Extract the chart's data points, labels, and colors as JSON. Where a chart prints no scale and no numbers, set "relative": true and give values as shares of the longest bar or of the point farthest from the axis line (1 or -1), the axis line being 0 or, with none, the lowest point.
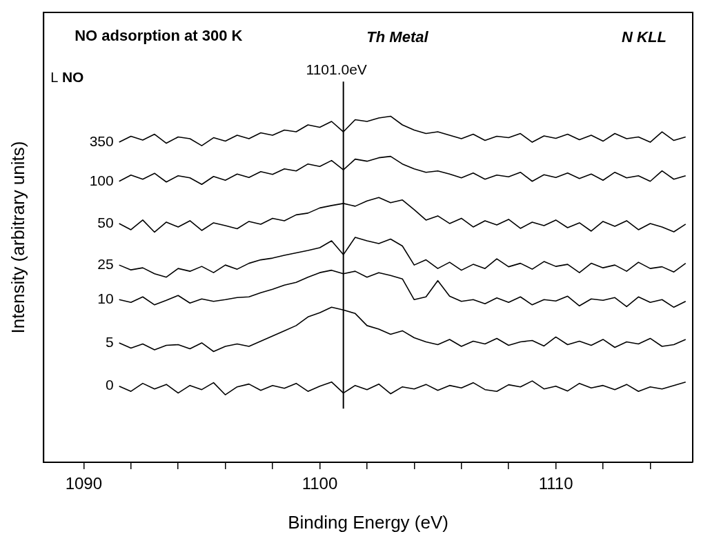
{
  "chart_data": {
    "type": "line",
    "title": "NO adsorption at 300 K",
    "annotations": [
      "Th Metal",
      "N KLL"
    ],
    "xlabel": "Binding Energy (eV)",
    "ylabel": "Intensity (arbitrary units)",
    "legend_title": "L NO",
    "relative": true,
    "legend": false,
    "grid": false,
    "marker": "none",
    "line_style": "solid",
    "xlim": [
      1088.3,
      1115.8
    ],
    "xticks": [
      1090,
      {
        "value": 1092,
        "label": null
      },
      {
        "value": 1094,
        "label": null
      },
      {
        "value": 1096,
        "label": null
      },
      {
        "value": 1098,
        "label": null
      },
      1100,
      {
        "value": 1102,
        "label": null
      },
      {
        "value": 1104,
        "label": null
      },
      {
        "value": 1106,
        "label": null
      },
      {
        "value": 1108,
        "label": null
      },
      1110,
      {
        "value": 1112,
        "label": null
      },
      {
        "value": 1114,
        "label": null
      }
    ],
    "ref_lines": [
      {
        "axis": "x",
        "value": 1101.0,
        "label": "1101.0eV",
        "color": "#000000"
      }
    ],
    "x": [
      1091.5,
      1092,
      1092.5,
      1093,
      1093.5,
      1094,
      1094.5,
      1095,
      1095.5,
      1096,
      1096.5,
      1097,
      1097.5,
      1098,
      1098.5,
      1099,
      1099.5,
      1100,
      1100.5,
      1101,
      1101.5,
      1102,
      1102.5,
      1103,
      1103.5,
      1104,
      1104.5,
      1105,
      1105.5,
      1106,
      1106.5,
      1107,
      1107.5,
      1108,
      1108.5,
      1109,
      1109.5,
      1110,
      1110.5,
      1111,
      1111.5,
      1112,
      1112.5,
      1113,
      1113.5,
      1114,
      1114.5,
      1115,
      1115.5
    ],
    "series": [
      {
        "name": "350",
        "color": "#000000",
        "values": [
          0.925,
          0.942,
          0.931,
          0.948,
          0.922,
          0.94,
          0.935,
          0.915,
          0.938,
          0.928,
          0.945,
          0.935,
          0.952,
          0.945,
          0.96,
          0.955,
          0.975,
          0.968,
          0.985,
          0.955,
          0.99,
          0.985,
          0.995,
          1.0,
          0.975,
          0.96,
          0.95,
          0.955,
          0.945,
          0.935,
          0.948,
          0.93,
          0.942,
          0.938,
          0.95,
          0.925,
          0.943,
          0.936,
          0.948,
          0.932,
          0.945,
          0.928,
          0.95,
          0.935,
          0.94,
          0.925,
          0.955,
          0.93,
          0.94
        ]
      },
      {
        "name": "100",
        "color": "#000000",
        "values": [
          0.812,
          0.83,
          0.818,
          0.835,
          0.81,
          0.828,
          0.822,
          0.803,
          0.826,
          0.815,
          0.833,
          0.823,
          0.84,
          0.832,
          0.848,
          0.842,
          0.862,
          0.855,
          0.872,
          0.845,
          0.876,
          0.87,
          0.88,
          0.884,
          0.862,
          0.848,
          0.838,
          0.842,
          0.833,
          0.822,
          0.836,
          0.818,
          0.83,
          0.825,
          0.838,
          0.812,
          0.831,
          0.823,
          0.836,
          0.82,
          0.833,
          0.815,
          0.838,
          0.822,
          0.828,
          0.812,
          0.842,
          0.818,
          0.828
        ]
      },
      {
        "name": "50",
        "color": "#000000",
        "values": [
          0.69,
          0.672,
          0.7,
          0.665,
          0.694,
          0.68,
          0.698,
          0.67,
          0.692,
          0.684,
          0.675,
          0.696,
          0.688,
          0.705,
          0.698,
          0.715,
          0.72,
          0.735,
          0.742,
          0.748,
          0.74,
          0.755,
          0.765,
          0.75,
          0.758,
          0.73,
          0.7,
          0.712,
          0.69,
          0.705,
          0.68,
          0.698,
          0.686,
          0.702,
          0.676,
          0.694,
          0.684,
          0.7,
          0.678,
          0.692,
          0.668,
          0.696,
          0.682,
          0.698,
          0.672,
          0.69,
          0.68,
          0.666,
          0.688
        ]
      },
      {
        "name": "25",
        "color": "#000000",
        "values": [
          0.57,
          0.556,
          0.562,
          0.545,
          0.535,
          0.56,
          0.552,
          0.566,
          0.548,
          0.57,
          0.558,
          0.575,
          0.585,
          0.59,
          0.598,
          0.605,
          0.612,
          0.62,
          0.64,
          0.6,
          0.65,
          0.64,
          0.632,
          0.645,
          0.625,
          0.57,
          0.585,
          0.56,
          0.578,
          0.555,
          0.572,
          0.56,
          0.588,
          0.565,
          0.575,
          0.558,
          0.58,
          0.566,
          0.572,
          0.548,
          0.575,
          0.562,
          0.57,
          0.552,
          0.578,
          0.56,
          0.565,
          0.55,
          0.575
        ]
      },
      {
        "name": "10",
        "color": "#000000",
        "values": [
          0.47,
          0.462,
          0.478,
          0.455,
          0.468,
          0.482,
          0.46,
          0.472,
          0.465,
          0.47,
          0.476,
          0.478,
          0.49,
          0.5,
          0.512,
          0.52,
          0.535,
          0.548,
          0.555,
          0.545,
          0.552,
          0.535,
          0.548,
          0.54,
          0.53,
          0.47,
          0.478,
          0.525,
          0.48,
          0.465,
          0.47,
          0.458,
          0.475,
          0.462,
          0.478,
          0.455,
          0.47,
          0.466,
          0.48,
          0.452,
          0.472,
          0.468,
          0.476,
          0.45,
          0.478,
          0.462,
          0.47,
          0.448,
          0.465
        ]
      },
      {
        "name": "5",
        "color": "#000000",
        "values": [
          0.345,
          0.33,
          0.342,
          0.325,
          0.338,
          0.34,
          0.328,
          0.345,
          0.32,
          0.335,
          0.342,
          0.335,
          0.35,
          0.365,
          0.38,
          0.395,
          0.42,
          0.432,
          0.448,
          0.44,
          0.43,
          0.395,
          0.385,
          0.37,
          0.38,
          0.36,
          0.348,
          0.34,
          0.355,
          0.335,
          0.35,
          0.342,
          0.358,
          0.338,
          0.348,
          0.352,
          0.336,
          0.362,
          0.34,
          0.35,
          0.338,
          0.355,
          0.332,
          0.348,
          0.342,
          0.358,
          0.335,
          0.34,
          0.355
        ]
      },
      {
        "name": "0",
        "color": "#000000",
        "values": [
          0.22,
          0.205,
          0.228,
          0.212,
          0.225,
          0.2,
          0.222,
          0.21,
          0.23,
          0.195,
          0.218,
          0.226,
          0.208,
          0.222,
          0.214,
          0.228,
          0.205,
          0.22,
          0.232,
          0.2,
          0.222,
          0.21,
          0.226,
          0.198,
          0.218,
          0.212,
          0.225,
          0.208,
          0.222,
          0.215,
          0.23,
          0.21,
          0.205,
          0.224,
          0.218,
          0.235,
          0.212,
          0.22,
          0.206,
          0.228,
          0.215,
          0.222,
          0.21,
          0.225,
          0.205,
          0.218,
          0.212,
          0.222,
          0.232
        ]
      }
    ]
  }
}
